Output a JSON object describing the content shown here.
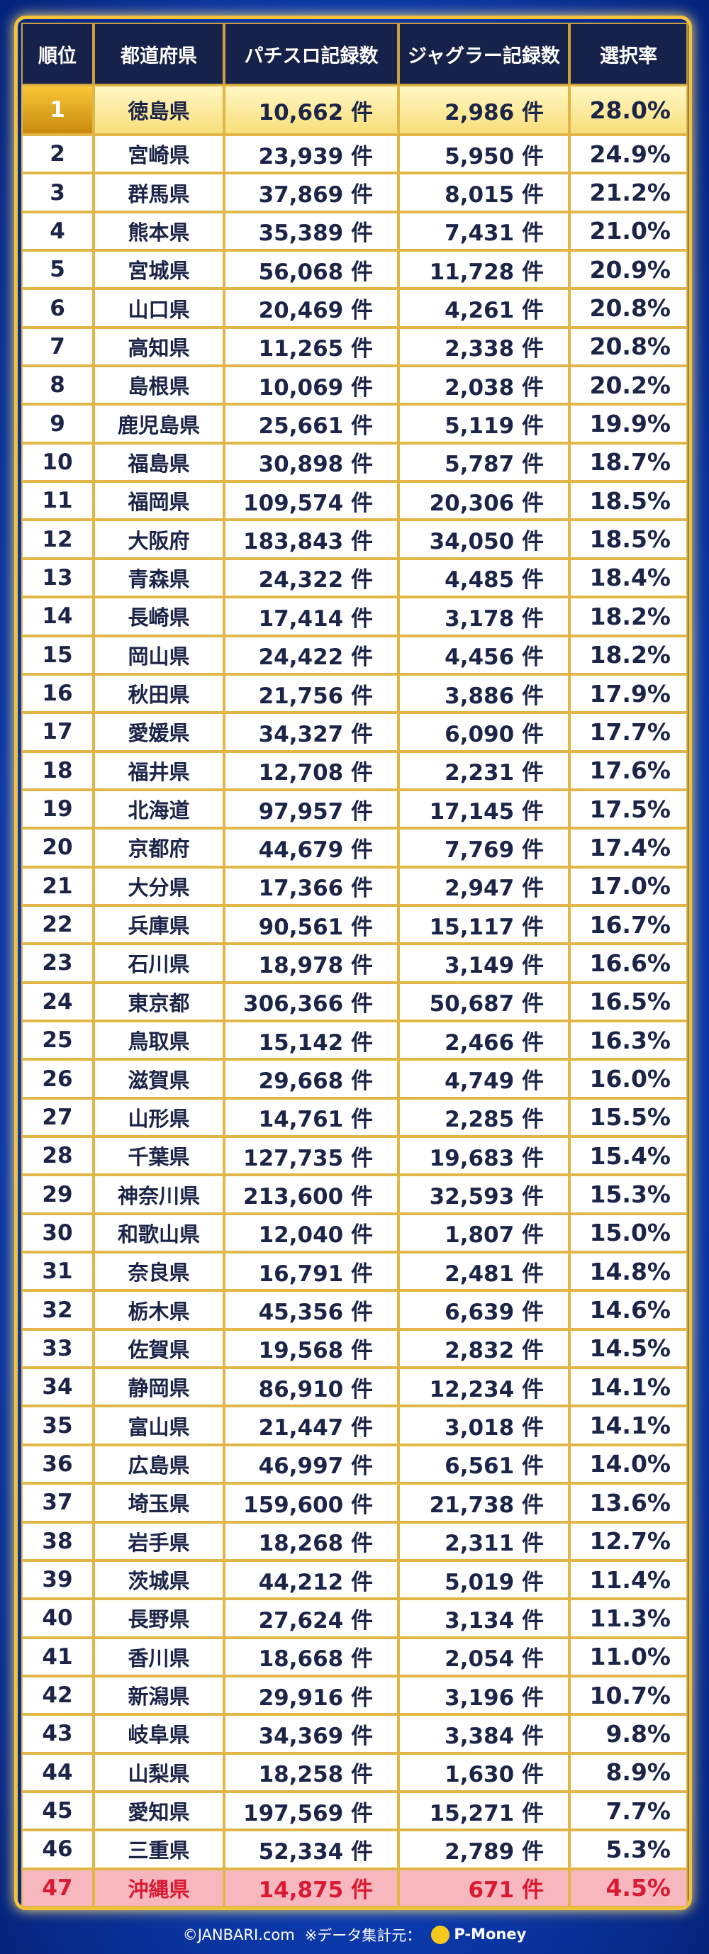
{
  "table": {
    "header": [
      "順位",
      "都道府県",
      "パチスロ記録数",
      "ジャグラー記録数",
      "選択率"
    ],
    "rows": [
      [
        "1",
        "徳島県",
        "10,662 件",
        "2,986 件",
        "28.0%"
      ],
      [
        "2",
        "宮崎県",
        "23,939 件",
        "5,950 件",
        "24.9%"
      ],
      [
        "3",
        "群馬県",
        "37,869 件",
        "8,015 件",
        "21.2%"
      ],
      [
        "4",
        "熊本県",
        "35,389 件",
        "7,431 件",
        "21.0%"
      ],
      [
        "5",
        "宮城県",
        "56,068 件",
        "11,728 件",
        "20.9%"
      ],
      [
        "6",
        "山口県",
        "20,469 件",
        "4,261 件",
        "20.8%"
      ],
      [
        "7",
        "高知県",
        "11,265 件",
        "2,338 件",
        "20.8%"
      ],
      [
        "8",
        "島根県",
        "10,069 件",
        "2,038 件",
        "20.2%"
      ],
      [
        "9",
        "鹿児島県",
        "25,661 件",
        "5,119 件",
        "19.9%"
      ],
      [
        "10",
        "福島県",
        "30,898 件",
        "5,787 件",
        "18.7%"
      ],
      [
        "11",
        "福岡県",
        "109,574 件",
        "20,306 件",
        "18.5%"
      ],
      [
        "12",
        "大阪府",
        "183,843 件",
        "34,050 件",
        "18.5%"
      ],
      [
        "13",
        "青森県",
        "24,322 件",
        "4,485 件",
        "18.4%"
      ],
      [
        "14",
        "長崎県",
        "17,414 件",
        "3,178 件",
        "18.2%"
      ],
      [
        "15",
        "岡山県",
        "24,422 件",
        "4,456 件",
        "18.2%"
      ],
      [
        "16",
        "秋田県",
        "21,756 件",
        "3,886 件",
        "17.9%"
      ],
      [
        "17",
        "愛媛県",
        "34,327 件",
        "6,090 件",
        "17.7%"
      ],
      [
        "18",
        "福井県",
        "12,708 件",
        "2,231 件",
        "17.6%"
      ],
      [
        "19",
        "北海道",
        "97,957 件",
        "17,145 件",
        "17.5%"
      ],
      [
        "20",
        "京都府",
        "44,679 件",
        "7,769 件",
        "17.4%"
      ],
      [
        "21",
        "大分県",
        "17,366 件",
        "2,947 件",
        "17.0%"
      ],
      [
        "22",
        "兵庫県",
        "90,561 件",
        "15,117 件",
        "16.7%"
      ],
      [
        "23",
        "石川県",
        "18,978 件",
        "3,149 件",
        "16.6%"
      ],
      [
        "24",
        "東京都",
        "306,366 件",
        "50,687 件",
        "16.5%"
      ],
      [
        "25",
        "鳥取県",
        "15,142 件",
        "2,466 件",
        "16.3%"
      ],
      [
        "26",
        "滋賀県",
        "29,668 件",
        "4,749 件",
        "16.0%"
      ],
      [
        "27",
        "山形県",
        "14,761 件",
        "2,285 件",
        "15.5%"
      ],
      [
        "28",
        "千葉県",
        "127,735 件",
        "19,683 件",
        "15.4%"
      ],
      [
        "29",
        "神奈川県",
        "213,600 件",
        "32,593 件",
        "15.3%"
      ],
      [
        "30",
        "和歌山県",
        "12,040 件",
        "1,807 件",
        "15.0%"
      ],
      [
        "31",
        "奈良県",
        "16,791 件",
        "2,481 件",
        "14.8%"
      ],
      [
        "32",
        "栃木県",
        "45,356 件",
        "6,639 件",
        "14.6%"
      ],
      [
        "33",
        "佐賀県",
        "19,568 件",
        "2,832 件",
        "14.5%"
      ],
      [
        "34",
        "静岡県",
        "86,910 件",
        "12,234 件",
        "14.1%"
      ],
      [
        "35",
        "富山県",
        "21,447 件",
        "3,018 件",
        "14.1%"
      ],
      [
        "36",
        "広島県",
        "46,997 件",
        "6,561 件",
        "14.0%"
      ],
      [
        "37",
        "埼玉県",
        "159,600 件",
        "21,738 件",
        "13.6%"
      ],
      [
        "38",
        "岩手県",
        "18,268 件",
        "2,311 件",
        "12.7%"
      ],
      [
        "39",
        "茨城県",
        "44,212 件",
        "5,019 件",
        "11.4%"
      ],
      [
        "40",
        "長野県",
        "27,624 件",
        "3,134 件",
        "11.3%"
      ],
      [
        "41",
        "香川県",
        "18,668 件",
        "2,054 件",
        "11.0%"
      ],
      [
        "42",
        "新潟県",
        "29,916 件",
        "3,196 件",
        "10.7%"
      ],
      [
        "43",
        "岐阜県",
        "34,369 件",
        "3,384 件",
        "9.8%"
      ],
      [
        "44",
        "山梨県",
        "18,258 件",
        "1,630 件",
        "8.9%"
      ],
      [
        "45",
        "愛知県",
        "197,569 件",
        "15,271 件",
        "7.7%"
      ],
      [
        "46",
        "三重県",
        "52,334 件",
        "2,789 件",
        "5.3%"
      ],
      [
        "47",
        "沖縄県",
        "14,875 件",
        "671 件",
        "4.5%"
      ]
    ]
  },
  "footer": {
    "copyright": "©JANBARI.com",
    "source": "※データ集計元：",
    "brand": "P-Money"
  }
}
